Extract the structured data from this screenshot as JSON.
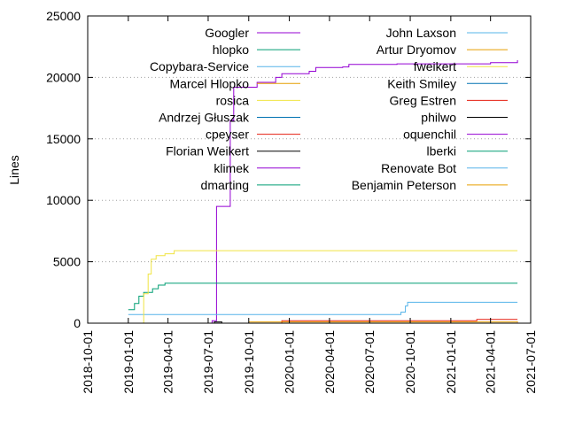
{
  "chart_data": {
    "type": "line",
    "title": "",
    "xlabel": "",
    "ylabel": "Lines",
    "ylim": [
      0,
      25000
    ],
    "yticks": [
      0,
      5000,
      10000,
      15000,
      20000,
      25000
    ],
    "xlim": [
      "2018-10-01",
      "2021-07-01"
    ],
    "xticks": [
      "2018-10-01",
      "2019-01-01",
      "2019-04-01",
      "2019-07-01",
      "2019-10-01",
      "2020-01-01",
      "2020-04-01",
      "2020-07-01",
      "2020-10-01",
      "2021-01-01",
      "2021-04-01",
      "2021-07-01"
    ],
    "grid": "y-dotted",
    "legend_placement": "top, two columns",
    "series": [
      {
        "name": "Googler",
        "color": "#9400d3",
        "points": [
          [
            "2019-01-05",
            0
          ],
          [
            "2019-07-01",
            0
          ],
          [
            "2019-07-10",
            200
          ],
          [
            "2019-07-20",
            9500
          ],
          [
            "2019-08-15",
            9500
          ],
          [
            "2019-08-20",
            16500
          ],
          [
            "2019-08-28",
            19200
          ],
          [
            "2019-10-15",
            19200
          ],
          [
            "2019-10-20",
            19600
          ],
          [
            "2019-12-01",
            20000
          ],
          [
            "2019-12-15",
            20300
          ],
          [
            "2020-02-01",
            20300
          ],
          [
            "2020-02-15",
            20500
          ],
          [
            "2020-03-01",
            20800
          ],
          [
            "2020-05-01",
            20850
          ],
          [
            "2020-05-15",
            21050
          ],
          [
            "2020-09-01",
            21100
          ],
          [
            "2021-04-01",
            21200
          ],
          [
            "2021-06-01",
            21400
          ]
        ]
      },
      {
        "name": "hlopko",
        "color": "#009e73",
        "points": [
          [
            "2019-01-01",
            1100
          ],
          [
            "2019-01-15",
            1600
          ],
          [
            "2019-01-25",
            2200
          ],
          [
            "2019-02-05",
            2500
          ],
          [
            "2019-02-25",
            2800
          ],
          [
            "2019-03-10",
            3100
          ],
          [
            "2019-03-25",
            3250
          ],
          [
            "2021-06-01",
            3250
          ]
        ]
      },
      {
        "name": "Copybara-Service",
        "color": "#56b4e9",
        "points": [
          [
            "2019-01-01",
            700
          ],
          [
            "2020-09-01",
            700
          ],
          [
            "2020-09-10",
            900
          ],
          [
            "2020-09-20",
            1400
          ],
          [
            "2020-09-25",
            1700
          ],
          [
            "2021-06-01",
            1700
          ]
        ]
      },
      {
        "name": "Marcel Hlopko",
        "color": "#e69f00",
        "points": [
          [
            "2019-01-01",
            0
          ],
          [
            "2021-06-01",
            0
          ]
        ]
      },
      {
        "name": "rosica",
        "color": "#f0e442",
        "points": [
          [
            "2019-01-15",
            0
          ],
          [
            "2019-02-05",
            2400
          ],
          [
            "2019-02-15",
            4000
          ],
          [
            "2019-02-22",
            5200
          ],
          [
            "2019-03-05",
            5500
          ],
          [
            "2019-03-25",
            5650
          ],
          [
            "2019-04-15",
            5900
          ],
          [
            "2021-06-01",
            5900
          ]
        ]
      },
      {
        "name": "Andrzej Głuszak",
        "color": "#0072b2",
        "points": [
          [
            "2019-01-01",
            0
          ],
          [
            "2021-06-01",
            0
          ]
        ]
      },
      {
        "name": "cpeyser",
        "color": "#e51e10",
        "points": [
          [
            "2019-09-01",
            0
          ],
          [
            "2019-12-15",
            200
          ],
          [
            "2021-02-15",
            200
          ],
          [
            "2021-03-01",
            300
          ],
          [
            "2021-06-01",
            300
          ]
        ]
      },
      {
        "name": "Florian Weikert",
        "color": "#000000",
        "points": [
          [
            "2019-07-01",
            0
          ],
          [
            "2019-07-15",
            100
          ],
          [
            "2019-08-01",
            0
          ]
        ]
      },
      {
        "name": "klimek",
        "color": "#9400d3",
        "points": [
          [
            "2019-09-01",
            0
          ],
          [
            "2021-06-01",
            50
          ]
        ]
      },
      {
        "name": "dmarting",
        "color": "#009e73",
        "points": [
          [
            "2019-01-01",
            0
          ],
          [
            "2021-06-01",
            0
          ]
        ]
      },
      {
        "name": "John Laxson",
        "color": "#56b4e9",
        "points": [
          [
            "2019-07-01",
            0
          ],
          [
            "2021-06-01",
            0
          ]
        ]
      },
      {
        "name": "Artur Dryomov",
        "color": "#e69f00",
        "points": [
          [
            "2019-10-01",
            100
          ],
          [
            "2021-06-01",
            150
          ]
        ]
      },
      {
        "name": "fweikert",
        "color": "#f0e442",
        "points": [
          [
            "2019-10-01",
            0
          ],
          [
            "2021-06-01",
            0
          ]
        ]
      },
      {
        "name": "Keith Smiley",
        "color": "#0072b2",
        "points": [
          [
            "2020-01-01",
            0
          ],
          [
            "2021-06-01",
            0
          ]
        ]
      },
      {
        "name": "Greg Estren",
        "color": "#e51e10",
        "points": [
          [
            "2020-06-01",
            0
          ],
          [
            "2021-06-01",
            0
          ]
        ]
      },
      {
        "name": "philwo",
        "color": "#000000",
        "points": [
          [
            "2020-03-01",
            0
          ],
          [
            "2021-06-01",
            0
          ]
        ]
      },
      {
        "name": "oquenchil",
        "color": "#9400d3",
        "points": [
          [
            "2020-09-01",
            0
          ],
          [
            "2021-06-01",
            0
          ]
        ]
      },
      {
        "name": "lberki",
        "color": "#009e73",
        "points": [
          [
            "2020-09-01",
            0
          ],
          [
            "2021-06-01",
            0
          ]
        ]
      },
      {
        "name": "Renovate Bot",
        "color": "#56b4e9",
        "points": [
          [
            "2021-01-01",
            0
          ],
          [
            "2021-06-01",
            0
          ]
        ]
      },
      {
        "name": "Benjamin Peterson",
        "color": "#e69f00",
        "points": [
          [
            "2021-02-01",
            0
          ],
          [
            "2021-06-01",
            0
          ]
        ]
      }
    ]
  }
}
